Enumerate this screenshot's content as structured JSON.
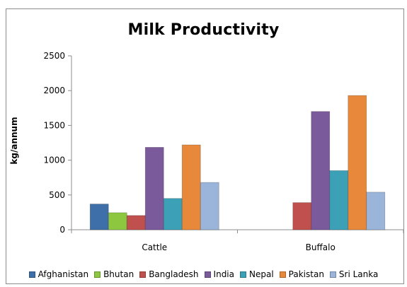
{
  "chart_data": {
    "type": "bar",
    "title": "Milk Productivity",
    "xlabel": "",
    "ylabel": "kg/annum",
    "ylim": [
      0,
      2500
    ],
    "yticks": [
      0,
      500,
      1000,
      1500,
      2000,
      2500
    ],
    "categories": [
      "Cattle",
      "Buffalo"
    ],
    "series": [
      {
        "name": "Afghanistan",
        "color": "#3f6fa8",
        "values": [
          370,
          null
        ]
      },
      {
        "name": "Bhutan",
        "color": "#8dc63f",
        "values": [
          245,
          null
        ]
      },
      {
        "name": "Bangladesh",
        "color": "#c0504d",
        "values": [
          205,
          390
        ]
      },
      {
        "name": "India",
        "color": "#7b5a9b",
        "values": [
          1185,
          1700
        ]
      },
      {
        "name": "Nepal",
        "color": "#3ca1b7",
        "values": [
          450,
          850
        ]
      },
      {
        "name": "Pakistan",
        "color": "#e8883a",
        "values": [
          1220,
          1930
        ]
      },
      {
        "name": "Sri Lanka",
        "color": "#9bb4d9",
        "values": [
          680,
          540
        ]
      }
    ],
    "grid": false,
    "legend_position": "bottom"
  }
}
